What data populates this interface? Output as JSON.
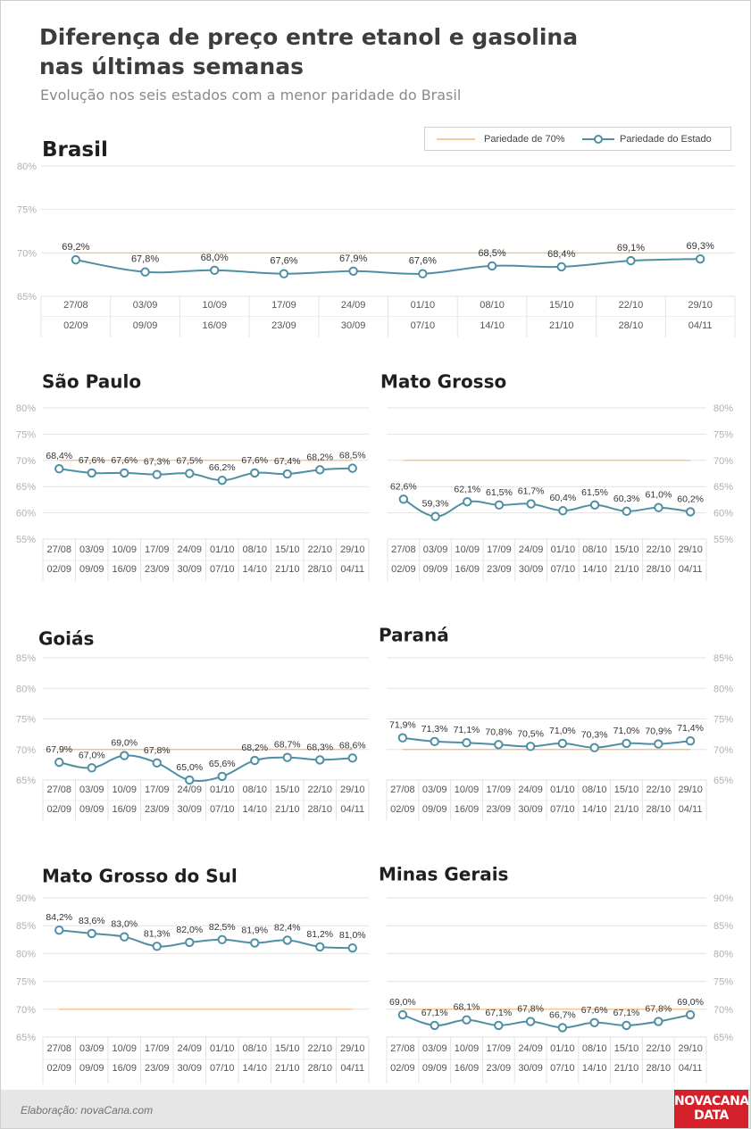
{
  "title": "Diferença de preço entre etanol e gasolina nas últimas semanas",
  "subtitle": "Evolução nos seis estados com a menor paridade do Brasil",
  "legend": {
    "reference_label": "Pariedade de 70%",
    "series_label": "Pariedade do Estado",
    "reference_color": "#f5b77a",
    "series_color": "#4f8fa3"
  },
  "footer": {
    "credit": "Elaboração: novaCana.com",
    "logo_line1": "NOVACANA",
    "logo_line2": "DATA"
  },
  "chart_data": [
    {
      "type": "line",
      "title": "Brasil",
      "week_start": [
        "27/08",
        "03/09",
        "10/09",
        "17/09",
        "24/09",
        "01/10",
        "08/10",
        "15/10",
        "22/10",
        "29/10"
      ],
      "week_end": [
        "02/09",
        "09/09",
        "16/09",
        "23/09",
        "30/09",
        "07/10",
        "14/10",
        "21/10",
        "28/10",
        "04/11"
      ],
      "values": [
        69.2,
        67.8,
        68.0,
        67.6,
        67.9,
        67.6,
        68.5,
        68.4,
        69.1,
        69.3
      ],
      "value_labels": [
        "69,2%",
        "67,8%",
        "68,0%",
        "67,6%",
        "67,9%",
        "67,6%",
        "68,5%",
        "68,4%",
        "69,1%",
        "69,3%"
      ],
      "reference": 70,
      "ylim": [
        65,
        80
      ],
      "yticks": [
        "65%",
        "70%",
        "75%",
        "80%"
      ],
      "y_axis_side": "left"
    },
    {
      "type": "line",
      "title": "São Paulo",
      "week_start": [
        "27/08",
        "03/09",
        "10/09",
        "17/09",
        "24/09",
        "01/10",
        "08/10",
        "15/10",
        "22/10",
        "29/10"
      ],
      "week_end": [
        "02/09",
        "09/09",
        "16/09",
        "23/09",
        "30/09",
        "07/10",
        "14/10",
        "21/10",
        "28/10",
        "04/11"
      ],
      "values": [
        68.4,
        67.6,
        67.6,
        67.3,
        67.5,
        66.2,
        67.6,
        67.4,
        68.2,
        68.5
      ],
      "value_labels": [
        "68,4%",
        "67,6%",
        "67,6%",
        "67,3%",
        "67,5%",
        "66,2%",
        "67,6%",
        "67,4%",
        "68,2%",
        "68,5%"
      ],
      "reference": 70,
      "ylim": [
        55,
        80
      ],
      "yticks": [
        "55%",
        "60%",
        "65%",
        "70%",
        "75%",
        "80%"
      ],
      "y_axis_side": "left"
    },
    {
      "type": "line",
      "title": "Mato Grosso",
      "week_start": [
        "27/08",
        "03/09",
        "10/09",
        "17/09",
        "24/09",
        "01/10",
        "08/10",
        "15/10",
        "22/10",
        "29/10"
      ],
      "week_end": [
        "02/09",
        "09/09",
        "16/09",
        "23/09",
        "30/09",
        "07/10",
        "14/10",
        "21/10",
        "28/10",
        "04/11"
      ],
      "values": [
        62.6,
        59.3,
        62.1,
        61.5,
        61.7,
        60.4,
        61.5,
        60.3,
        61.0,
        60.2
      ],
      "value_labels": [
        "62,6%",
        "59,3%",
        "62,1%",
        "61,5%",
        "61,7%",
        "60,4%",
        "61,5%",
        "60,3%",
        "61,0%",
        "60,2%"
      ],
      "reference": 70,
      "ylim": [
        55,
        80
      ],
      "yticks": [
        "55%",
        "60%",
        "65%",
        "70%",
        "75%",
        "80%"
      ],
      "y_axis_side": "right"
    },
    {
      "type": "line",
      "title": "Goiás",
      "week_start": [
        "27/08",
        "03/09",
        "10/09",
        "17/09",
        "24/09",
        "01/10",
        "08/10",
        "15/10",
        "22/10",
        "29/10"
      ],
      "week_end": [
        "02/09",
        "09/09",
        "16/09",
        "23/09",
        "30/09",
        "07/10",
        "14/10",
        "21/10",
        "28/10",
        "04/11"
      ],
      "values": [
        67.9,
        67.0,
        69.0,
        67.8,
        65.0,
        65.6,
        68.2,
        68.7,
        68.3,
        68.6
      ],
      "value_labels": [
        "67,9%",
        "67,0%",
        "69,0%",
        "67,8%",
        "65,0%",
        "65,6%",
        "68,2%",
        "68,7%",
        "68,3%",
        "68,6%"
      ],
      "reference": 70,
      "ylim": [
        65,
        85
      ],
      "yticks": [
        "65%",
        "70%",
        "75%",
        "80%",
        "85%"
      ],
      "y_axis_side": "left"
    },
    {
      "type": "line",
      "title": "Paraná",
      "week_start": [
        "27/08",
        "03/09",
        "10/09",
        "17/09",
        "24/09",
        "01/10",
        "08/10",
        "15/10",
        "22/10",
        "29/10"
      ],
      "week_end": [
        "02/09",
        "09/09",
        "16/09",
        "23/09",
        "30/09",
        "07/10",
        "14/10",
        "21/10",
        "28/10",
        "04/11"
      ],
      "values": [
        71.9,
        71.3,
        71.1,
        70.8,
        70.5,
        71.0,
        70.3,
        71.0,
        70.9,
        71.4
      ],
      "value_labels": [
        "71,9%",
        "71,3%",
        "71,1%",
        "70,8%",
        "70,5%",
        "71,0%",
        "70,3%",
        "71,0%",
        "70,9%",
        "71,4%"
      ],
      "reference": 70,
      "ylim": [
        65,
        85
      ],
      "yticks": [
        "65%",
        "70%",
        "75%",
        "80%",
        "85%"
      ],
      "y_axis_side": "right"
    },
    {
      "type": "line",
      "title": "Mato Grosso do Sul",
      "week_start": [
        "27/08",
        "03/09",
        "10/09",
        "17/09",
        "24/09",
        "01/10",
        "08/10",
        "15/10",
        "22/10",
        "29/10"
      ],
      "week_end": [
        "02/09",
        "09/09",
        "16/09",
        "23/09",
        "30/09",
        "07/10",
        "14/10",
        "21/10",
        "28/10",
        "04/11"
      ],
      "values": [
        84.2,
        83.6,
        83.0,
        81.3,
        82.0,
        82.5,
        81.9,
        82.4,
        81.2,
        81.0
      ],
      "value_labels": [
        "84,2%",
        "83,6%",
        "83,0%",
        "81,3%",
        "82,0%",
        "82,5%",
        "81,9%",
        "82,4%",
        "81,2%",
        "81,0%"
      ],
      "reference": 70,
      "ylim": [
        65,
        90
      ],
      "yticks": [
        "65%",
        "70%",
        "75%",
        "80%",
        "85%",
        "90%"
      ],
      "y_axis_side": "left"
    },
    {
      "type": "line",
      "title": "Minas Gerais",
      "week_start": [
        "27/08",
        "03/09",
        "10/09",
        "17/09",
        "24/09",
        "01/10",
        "08/10",
        "15/10",
        "22/10",
        "29/10"
      ],
      "week_end": [
        "02/09",
        "09/09",
        "16/09",
        "23/09",
        "30/09",
        "07/10",
        "14/10",
        "21/10",
        "28/10",
        "04/11"
      ],
      "values": [
        69.0,
        67.1,
        68.1,
        67.1,
        67.8,
        66.7,
        67.6,
        67.1,
        67.8,
        69.0
      ],
      "value_labels": [
        "69,0%",
        "67,1%",
        "68,1%",
        "67,1%",
        "67,8%",
        "66,7%",
        "67,6%",
        "67,1%",
        "67,8%",
        "69,0%"
      ],
      "reference": 70,
      "ylim": [
        65,
        90
      ],
      "yticks": [
        "65%",
        "70%",
        "75%",
        "80%",
        "85%",
        "90%"
      ],
      "y_axis_side": "right"
    }
  ]
}
